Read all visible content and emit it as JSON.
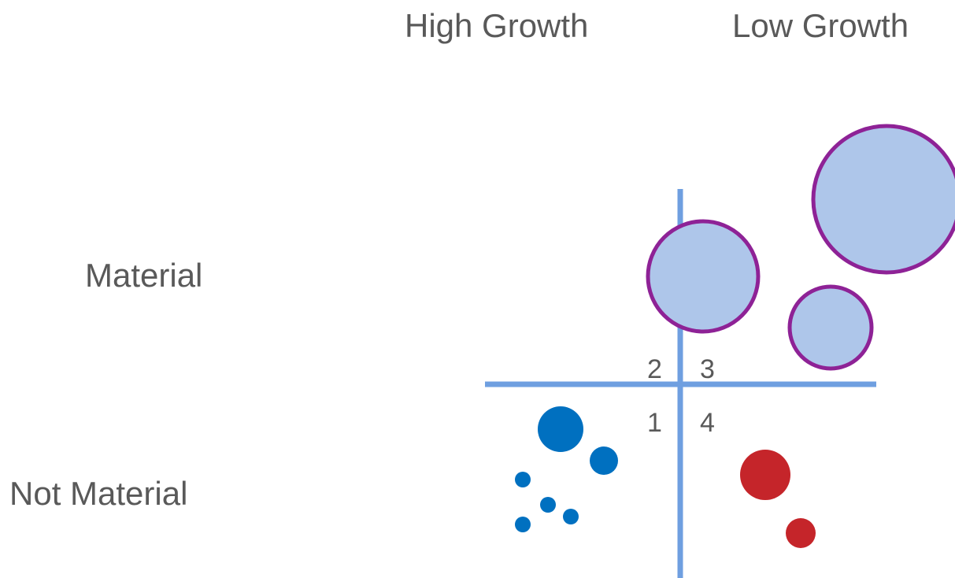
{
  "columns": {
    "left_label": "High Growth",
    "right_label": "Low Growth"
  },
  "rows": {
    "top_label": "Material",
    "bottom_label": "Not Material"
  },
  "quadrants": {
    "top_left": "2",
    "top_right": "3",
    "bottom_left": "1",
    "bottom_right": "4"
  },
  "colors": {
    "text": "#595959",
    "axis": "#6F9FE0",
    "large_bubble_fill": "#AEC6EA",
    "large_bubble_stroke": "#8E2296",
    "quadrant1_bubble": "#0070C0",
    "quadrant4_bubble": "#C5252A"
  },
  "bubbles": [
    {
      "group": "material-outlined",
      "size": 90
    },
    {
      "group": "material-outlined",
      "size": 68
    },
    {
      "group": "material-outlined",
      "size": 50
    },
    {
      "group": "quadrant-1",
      "size": 28
    },
    {
      "group": "quadrant-1",
      "size": 17
    },
    {
      "group": "quadrant-1",
      "size": 10
    },
    {
      "group": "quadrant-1",
      "size": 10
    },
    {
      "group": "quadrant-1",
      "size": 10
    },
    {
      "group": "quadrant-1",
      "size": 10
    },
    {
      "group": "quadrant-4",
      "size": 31
    },
    {
      "group": "quadrant-4",
      "size": 18
    }
  ]
}
